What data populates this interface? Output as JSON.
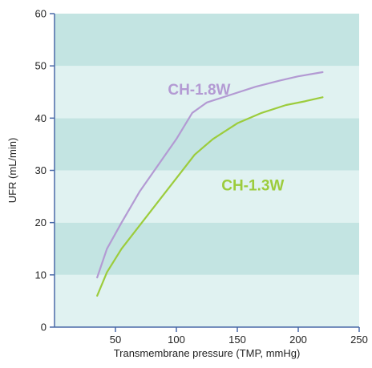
{
  "colors": {
    "band_dark": "#c3e4e2",
    "band_light": "#e0f2f1",
    "axis": "#4a6aa8",
    "series_1": "#b39ad3",
    "series_2": "#9ccc3c"
  },
  "chart_data": {
    "type": "line",
    "xlabel": "Transmembrane pressure (TMP, mmHg)",
    "ylabel": "UFR (mL/min)",
    "xlim": [
      0,
      250
    ],
    "ylim": [
      0,
      60
    ],
    "xticks": [
      50,
      100,
      150,
      200,
      250
    ],
    "yticks": [
      0,
      10,
      20,
      30,
      40,
      50,
      60
    ],
    "grid": false,
    "background": "alternating horizontal bands every 10 units",
    "series": [
      {
        "name": "CH-1.8W",
        "color": "#b39ad3",
        "x": [
          35,
          43,
          55,
          70,
          85,
          100,
          113,
          125,
          145,
          165,
          185,
          200,
          220
        ],
        "y": [
          9.5,
          15,
          20,
          26,
          31,
          36,
          41,
          43,
          44.5,
          46,
          47.2,
          48,
          48.8
        ]
      },
      {
        "name": "CH-1.3W",
        "color": "#9ccc3c",
        "x": [
          35,
          43,
          55,
          70,
          85,
          100,
          115,
          130,
          150,
          170,
          190,
          205,
          220
        ],
        "y": [
          6,
          10.5,
          15,
          19.5,
          24,
          28.5,
          33,
          36,
          39,
          41,
          42.5,
          43.2,
          44
        ]
      }
    ]
  }
}
